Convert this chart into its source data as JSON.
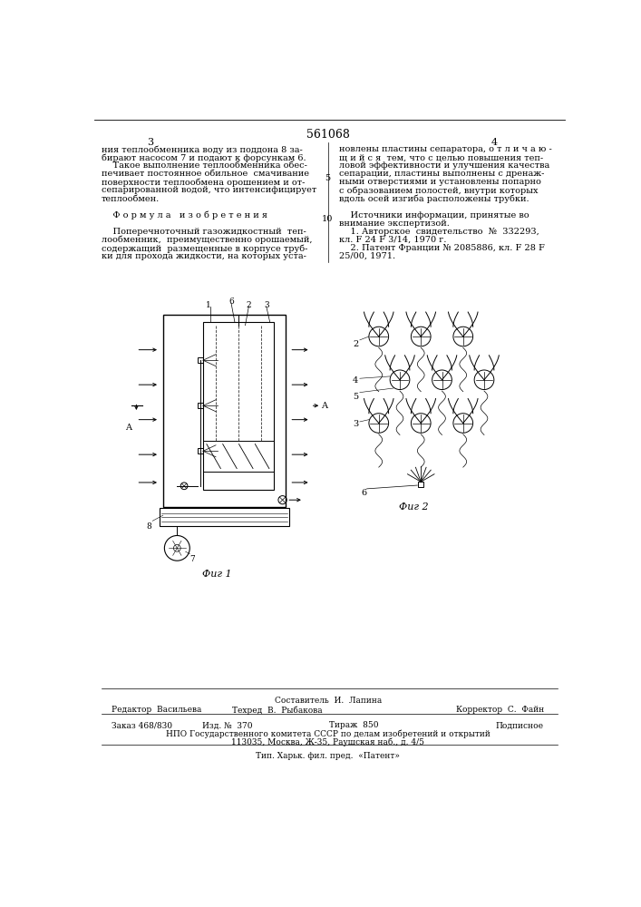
{
  "page_width": 7.07,
  "page_height": 10.0,
  "dpi": 100,
  "bg_color": "#ffffff",
  "header_number": "561068",
  "page_left": "3",
  "page_right": "4",
  "text_col1_lines": [
    "ния теплообменника воду из поддона 8 за-",
    "бирают насосом 7 и подают к форсункам 6.",
    "    Такое выполнение теплообменника обес-",
    "печивает постоянное обильное  смачивание",
    "поверхности теплообмена орошением и от-",
    "сепарированной водой, что интенсифицирует",
    "теплообмен.",
    "",
    "    Ф о р м у л а   и з о б р е т е н и я",
    "",
    "    Поперечноточный газожидкостный  теп-",
    "лообменник,  преимущественно орошаемый,",
    "содержащий  размещенные в корпусе труб-",
    "ки для прохода жидкости, на которых уста-"
  ],
  "text_col2_lines": [
    "новлены пластины сепаратора, о т л и ч а ю -",
    "щ и й с я  тем, что с целью повышения теп-",
    "ловой эффективности и улучшения качества",
    "сепарации, пластины выполнены с дренаж-",
    "ными отверстиями и установлены попарно",
    "с образованием полостей, внутри которых",
    "вдоль осей изгиба расположены трубки.",
    "",
    "    Источники информации, принятые во",
    "внимание экспертизой.",
    "    1. Авторское  свидетельство  №  332293,",
    "кл. F 24 F 3/14, 1970 г.",
    "    2. Патент Франции № 2085886, кл. F 28 F",
    "25/00, 1971."
  ],
  "fig1_caption": "Фиг 1",
  "fig2_caption": "Фиг 2",
  "footer_line0": "Составитель  И.  Лапина",
  "footer_editor": "Редактор  Васильева",
  "footer_tekhred": "Техред  В.  Рыбакова",
  "footer_korrektor": "Корректор  С.  Файн",
  "footer_zakaz": "Заказ 468/830",
  "footer_izd": "Изд. №  370",
  "footer_tirazh": "Тираж  850",
  "footer_podpisnoe": "Подписное",
  "footer_npo": "НПО Государственного комитета СССР по делам изобретений и открытий",
  "footer_addr": "113035, Москва, Ж-35, Раушская наб., д. 4/5",
  "footer_tip": "Тип. Харьк. фил. пред.  «Патент»"
}
